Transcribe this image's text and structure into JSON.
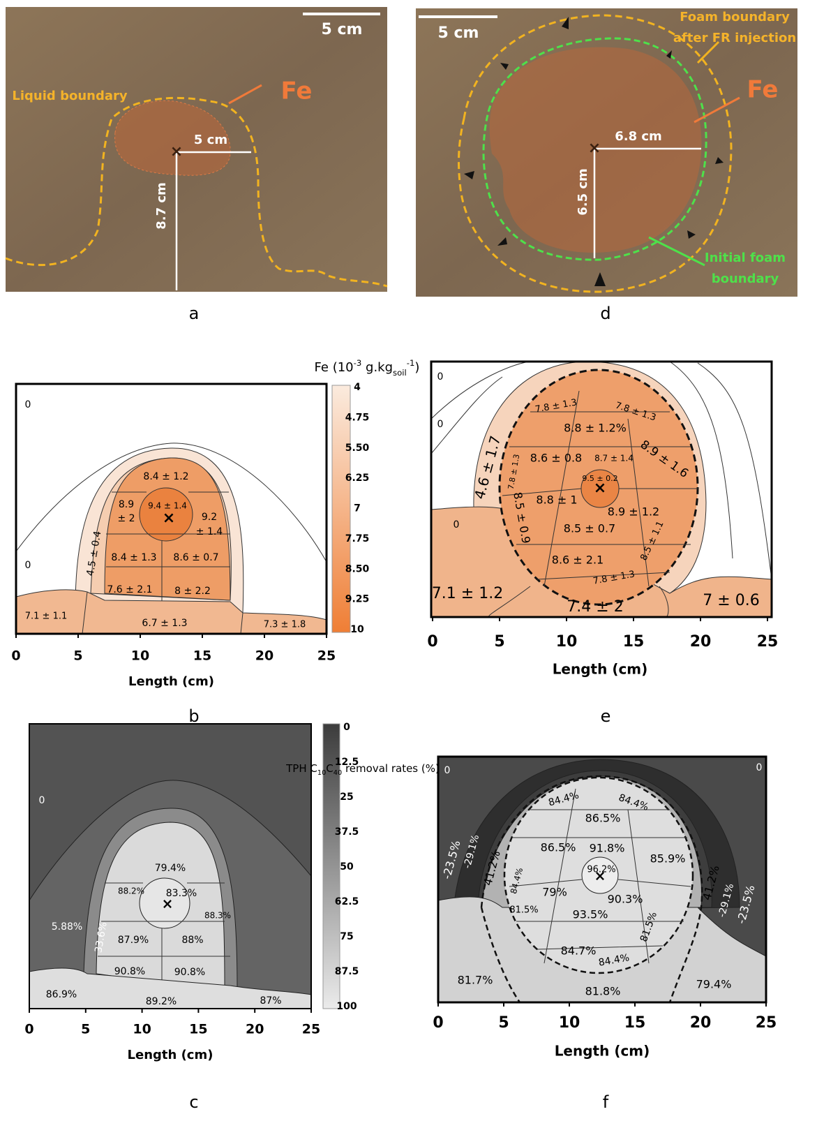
{
  "panel_a": {
    "label": "a",
    "scale_bar": "5 cm",
    "liquid_boundary": "Liquid boundary",
    "fe": "Fe",
    "radius": "5 cm",
    "depth": "8.7 cm"
  },
  "panel_d": {
    "label": "d",
    "scale_bar": "5 cm",
    "foam_boundary_after": [
      "Foam boundary",
      "after FR injection"
    ],
    "fe": "Fe",
    "radius": "6.8 cm",
    "depth": "6.5 cm",
    "initial_foam_boundary": [
      "Initial foam",
      "boundary"
    ]
  },
  "panel_b": {
    "label": "b",
    "colorbar_title": [
      "Fe (10",
      "-3",
      " g.kg",
      "soil",
      "-1",
      ")"
    ],
    "colorbar_ticks": [
      "4",
      "4.75",
      "5.50",
      "6.25",
      "7",
      "7.75",
      "8.50",
      "9.25",
      "10"
    ],
    "regions": [
      "0",
      "0",
      "8.4 ± 1.2",
      "8.9",
      "± 2",
      "9.4 ± 1.4",
      "9.2",
      "± 1.4",
      "4.5 ± 0.4",
      "8.4 ± 1.3",
      "8.6 ± 0.7",
      "7.6 ± 2.1",
      "8 ± 2.2",
      "7.1 ± 1.1",
      "6.7 ± 1.3",
      "7.3 ± 1.8"
    ],
    "xticks": [
      "0",
      "5",
      "10",
      "15",
      "20",
      "25"
    ],
    "xlabel": "Length (cm)"
  },
  "panel_e": {
    "label": "e",
    "regions": [
      "0",
      "0",
      "0",
      "7.8 ± 1.3",
      "7.8 ± 1.3",
      "8.8 ± 1.2%",
      "8.6 ± 0.8",
      "8.7 ± 1.4",
      "8.9 ± 1.6",
      "4.6 ± 1.7",
      "7.8 ± 1.3",
      "9.5 ± 0.2",
      "8.5 ± 0.9",
      "8.8 ± 1",
      "8.9 ± 1.2",
      "8.5 ± 0.7",
      "8.5 ± 1.1",
      "8.6 ± 2.1",
      "7.8 ± 1.3",
      "7.1 ± 1.2",
      "7.4 ± 2",
      "7 ± 0.6"
    ],
    "xticks": [
      "0",
      "5",
      "10",
      "15",
      "20",
      "25"
    ],
    "xlabel": "Length (cm)"
  },
  "panel_c": {
    "label": "c",
    "colorbar_title": [
      "TPH C",
      "10",
      "C",
      "40",
      " removal rates (%)"
    ],
    "colorbar_ticks": [
      "0",
      "12.5",
      "25",
      "37.5",
      "50",
      "62.5",
      "75",
      "87.5",
      "100"
    ],
    "regions": [
      "0",
      "79.4%",
      "88.2%",
      "83.3%",
      "88.3%",
      "5.88%",
      "33.6%",
      "87.9%",
      "88%",
      "90.8%",
      "90.8%",
      "86.9%",
      "89.2%",
      "87%"
    ],
    "xticks": [
      "0",
      "5",
      "10",
      "15",
      "20",
      "25"
    ],
    "xlabel": "Length (cm)"
  },
  "panel_f": {
    "label": "f",
    "regions": [
      "0",
      "0",
      "84.4%",
      "84.4%",
      "86.5%",
      "-23.5%",
      "-29.1%",
      "41.2%",
      "86.5%",
      "91.8%",
      "85.9%",
      "84.4%",
      "96.2%",
      "79%",
      "90.3%",
      "81.5%",
      "93.5%",
      "81.5%",
      "41.2%",
      "-29.1%",
      "-23.5%",
      "84.7%",
      "84.4%",
      "81.7%",
      "81.8%",
      "79.4%"
    ],
    "xticks": [
      "0",
      "5",
      "10",
      "15",
      "20",
      "25"
    ],
    "xlabel": "Length (cm)"
  }
}
